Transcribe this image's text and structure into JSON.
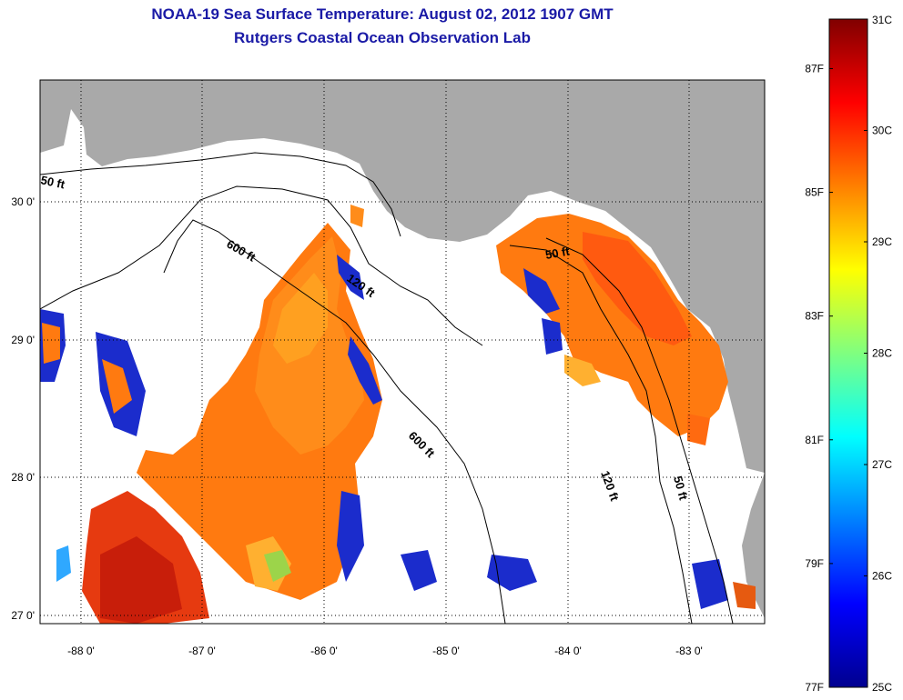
{
  "header": {
    "title_line1": "NOAA-19 Sea Surface Temperature:  August 02, 2012 1907 GMT",
    "title_line2": "Rutgers Coastal Ocean Observation Lab"
  },
  "map": {
    "lon_ticks": [
      "-88 0'",
      "-87 0'",
      "-86 0'",
      "-85 0'",
      "-84 0'",
      "-83 0'"
    ],
    "lat_ticks": [
      "30 0'",
      "29 0'",
      "28 0'",
      "27 0'"
    ],
    "contours": [
      {
        "label": "50 ft"
      },
      {
        "label": "600 ft"
      },
      {
        "label": "120 ft"
      },
      {
        "label": "600 ft"
      },
      {
        "label": "50 ft"
      },
      {
        "label": "120 ft"
      },
      {
        "label": "50 ft"
      }
    ],
    "colors": {
      "land": "#a9a9a9",
      "ocean": "#ffffff"
    }
  },
  "colorbar": {
    "min_c": 25,
    "max_c": 31,
    "celsius_labels": [
      "31C",
      "30C",
      "29C",
      "28C",
      "27C",
      "26C",
      "25C"
    ],
    "fahrenheit_labels": [
      "87F",
      "85F",
      "83F",
      "81F",
      "79F",
      "77F"
    ],
    "celsius_values": [
      31,
      30,
      29,
      28,
      27,
      26,
      25
    ],
    "fahrenheit_values": [
      87,
      85,
      83,
      81,
      79,
      77
    ]
  }
}
